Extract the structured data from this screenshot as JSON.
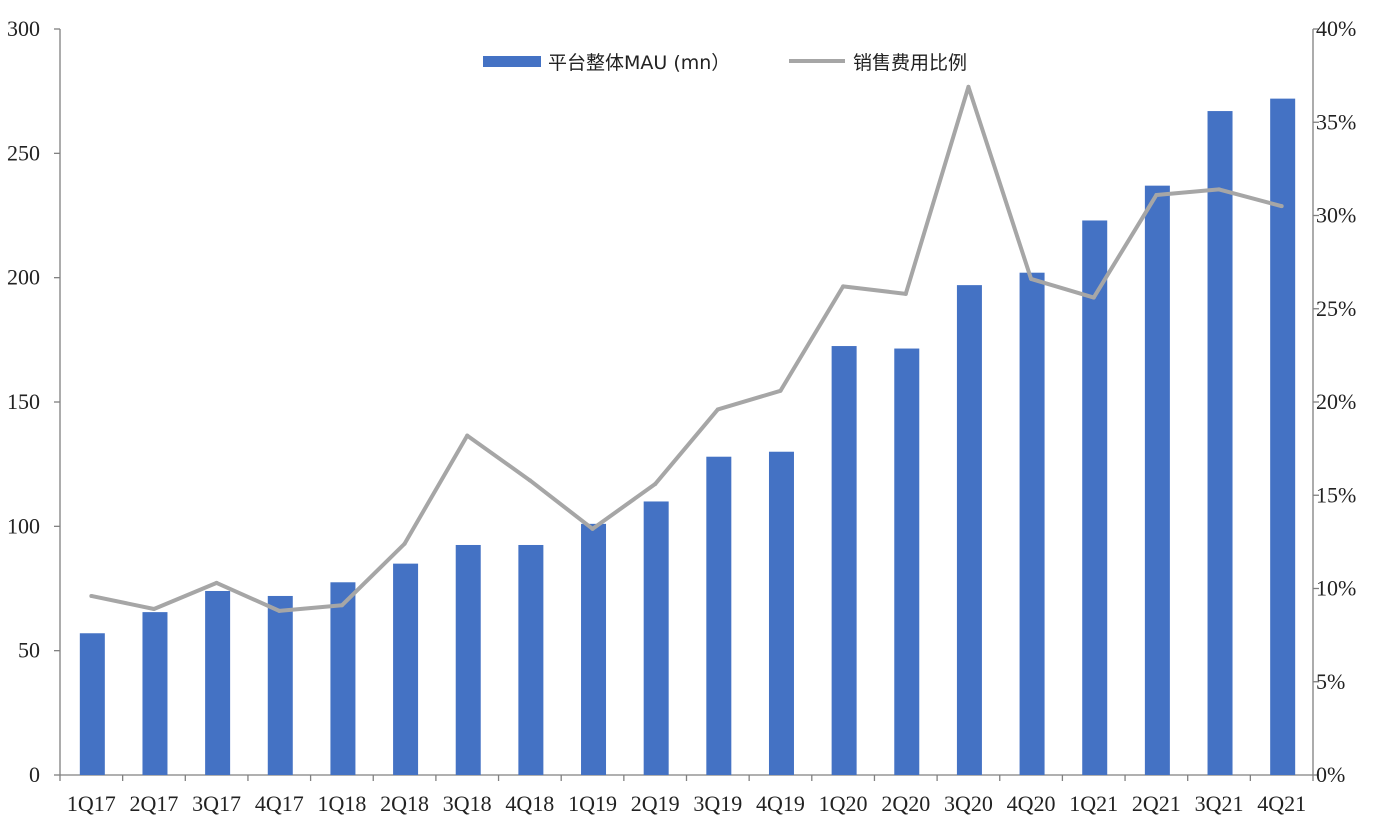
{
  "chart_data": {
    "type": "bar+line",
    "categories": [
      "1Q17",
      "2Q17",
      "3Q17",
      "4Q17",
      "1Q18",
      "2Q18",
      "3Q18",
      "4Q18",
      "1Q19",
      "2Q19",
      "3Q19",
      "4Q19",
      "1Q20",
      "2Q20",
      "3Q20",
      "4Q20",
      "1Q21",
      "2Q21",
      "3Q21",
      "4Q21"
    ],
    "series": [
      {
        "name": "平台整体MAU (mn）",
        "type": "bar",
        "axis": "left",
        "color": "#4472C4",
        "values": [
          57,
          65.5,
          74,
          72,
          77.5,
          85,
          92.5,
          92.5,
          101,
          110,
          128,
          130,
          172.5,
          171.5,
          197,
          202,
          223,
          237,
          267,
          272
        ]
      },
      {
        "name": "销售费用比例",
        "type": "line",
        "axis": "right",
        "color": "#A6A6A6",
        "values": [
          9.6,
          8.9,
          10.3,
          8.8,
          9.1,
          12.4,
          18.2,
          15.8,
          13.2,
          15.6,
          19.6,
          20.6,
          26.2,
          25.8,
          36.9,
          26.6,
          25.6,
          31.1,
          31.4,
          30.5
        ]
      }
    ],
    "y_left": {
      "lim": [
        0,
        300
      ],
      "ticks": [
        0,
        50,
        100,
        150,
        200,
        250,
        300
      ]
    },
    "y_right": {
      "lim": [
        0,
        40
      ],
      "ticks": [
        "0%",
        "5%",
        "10%",
        "15%",
        "20%",
        "25%",
        "30%",
        "35%",
        "40%"
      ]
    },
    "legend_position": "top-center",
    "grid": false
  }
}
